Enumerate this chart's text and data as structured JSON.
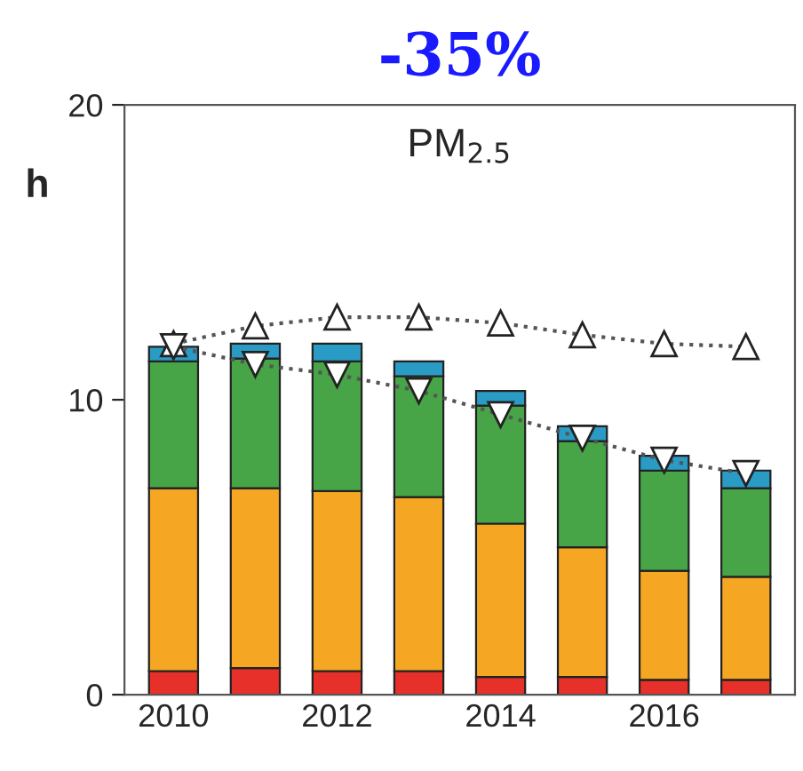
{
  "chart_data": {
    "type": "bar",
    "title": "-35%",
    "ylabel": "h",
    "annotations": [
      "PM$_{2.5}$"
    ],
    "categories": [
      "2010",
      null,
      "2012",
      null,
      "2014",
      null,
      "2016",
      null
    ],
    "stacked": true,
    "ylim": [
      0,
      20
    ],
    "yticks": [
      0,
      10,
      20
    ],
    "grid": false,
    "legend": false,
    "series": [
      {
        "color": "#e8302a",
        "values": [
          0.8,
          0.9,
          0.8,
          0.8,
          0.6,
          0.6,
          0.5,
          0.5
        ]
      },
      {
        "color": "#f5a623",
        "values": [
          6.2,
          6.1,
          6.1,
          5.9,
          5.2,
          4.4,
          3.7,
          3.5
        ]
      },
      {
        "color": "#47a447",
        "values": [
          4.3,
          4.4,
          4.4,
          4.1,
          4.0,
          3.6,
          3.4,
          3.0
        ]
      },
      {
        "color": "#2a9bc4",
        "values": [
          0.5,
          0.5,
          0.6,
          0.5,
          0.5,
          0.5,
          0.5,
          0.6
        ]
      },
      {
        "type": "line",
        "color": "#555555",
        "marker": "triangle",
        "line_style": "dotted",
        "values": [
          11.9,
          12.5,
          12.8,
          12.8,
          12.6,
          12.2,
          11.9,
          11.8
        ]
      },
      {
        "type": "line",
        "color": "#555555",
        "marker": "triangle_down",
        "line_style": "dotted",
        "values": [
          11.8,
          11.2,
          10.85,
          10.3,
          9.5,
          8.7,
          7.95,
          7.5
        ]
      }
    ]
  }
}
